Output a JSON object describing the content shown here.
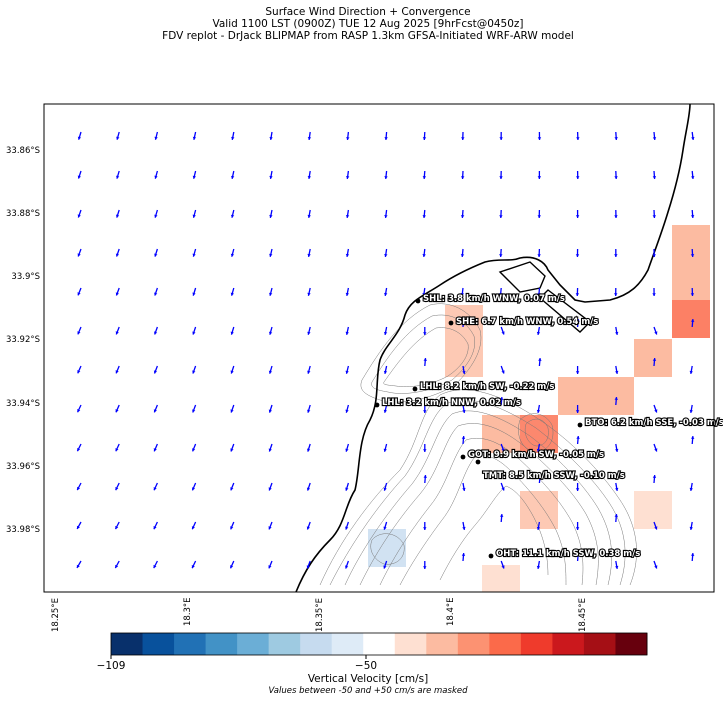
{
  "header": {
    "line1": "Surface Wind Direction + Convergence",
    "line2": "Valid 1100 LST (0900Z) TUE 12 Aug 2025 [9hrFcst@0450z]",
    "line3": "FDV replot - DrJack BLIPMAP from RASP 1.3km GFSA-Initiated WRF-ARW model"
  },
  "axes": {
    "lat_labels": [
      "33.86°S",
      "33.88°S",
      "33.9°S",
      "33.92°S",
      "33.94°S",
      "33.96°S",
      "33.98°S"
    ],
    "lon_labels": [
      "18.25°E",
      "18.3°E",
      "18.35°E",
      "18.4°E",
      "18.45°E"
    ]
  },
  "stations": [
    {
      "code": "SHL",
      "label": "SHL: 3.8 km/h WNW, 0.07 m/s"
    },
    {
      "code": "SHE",
      "label": "SHE: 6.7 km/h WNW, 0.54 m/s"
    },
    {
      "code": "LHL",
      "label": "LHL: 8.2 km/h SW, -0.22 m/s"
    },
    {
      "code": "LHL2",
      "label": "LHL: 3.2 km/h NNW, 0.02 m/s"
    },
    {
      "code": "BTO",
      "label": "BTO: 6.2 km/h SSE, -0.03 m/s"
    },
    {
      "code": "GOT",
      "label": "GOT: 9.9 km/h SW, -0.05 m/s"
    },
    {
      "code": "TMT",
      "label": "TMT: 8.5 km/h SSW, -0.10 m/s"
    },
    {
      "code": "OHT",
      "label": "OHT: 11.1 km/h SSW, 0.38 m/s"
    }
  ],
  "colorbar": {
    "title": "Vertical Velocity [cm/s]",
    "note": "Values between -50 and +50 cm/s are masked",
    "tick_min": "−109",
    "tick_mid": "−50",
    "colors": [
      "#08306b",
      "#08519c",
      "#2171b5",
      "#4292c6",
      "#6baed6",
      "#9ecae1",
      "#c6dbef",
      "#deebf7",
      "#ffffff",
      "#fee0d2",
      "#fcbba1",
      "#fc9272",
      "#fb6a4a",
      "#ef3b2c",
      "#cb181d",
      "#a50f15",
      "#67000d"
    ]
  },
  "wind_arrow_color": "#0000ff"
}
